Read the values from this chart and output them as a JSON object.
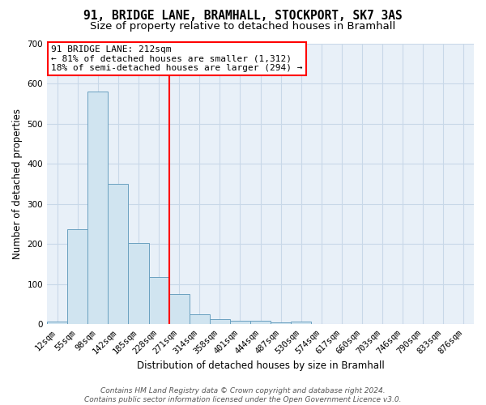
{
  "title1": "91, BRIDGE LANE, BRAMHALL, STOCKPORT, SK7 3AS",
  "title2": "Size of property relative to detached houses in Bramhall",
  "xlabel": "Distribution of detached houses by size in Bramhall",
  "ylabel": "Number of detached properties",
  "bar_labels": [
    "12sqm",
    "55sqm",
    "98sqm",
    "142sqm",
    "185sqm",
    "228sqm",
    "271sqm",
    "314sqm",
    "358sqm",
    "401sqm",
    "444sqm",
    "487sqm",
    "530sqm",
    "574sqm",
    "617sqm",
    "660sqm",
    "703sqm",
    "746sqm",
    "790sqm",
    "833sqm",
    "876sqm"
  ],
  "bar_values": [
    8,
    238,
    580,
    350,
    203,
    118,
    75,
    26,
    14,
    9,
    9,
    6,
    8,
    0,
    0,
    0,
    0,
    0,
    0,
    0,
    0
  ],
  "bar_color": "#d0e4f0",
  "bar_edge_color": "#6aa0c0",
  "vline_x_index": 5.5,
  "vline_color": "red",
  "annotation_text": "91 BRIDGE LANE: 212sqm\n← 81% of detached houses are smaller (1,312)\n18% of semi-detached houses are larger (294) →",
  "annotation_box_color": "white",
  "annotation_box_edge_color": "red",
  "ylim": [
    0,
    700
  ],
  "yticks": [
    0,
    100,
    200,
    300,
    400,
    500,
    600,
    700
  ],
  "grid_color": "#c8d8e8",
  "background_color": "#ffffff",
  "plot_bg_color": "#e8f0f8",
  "footer_line1": "Contains HM Land Registry data © Crown copyright and database right 2024.",
  "footer_line2": "Contains public sector information licensed under the Open Government Licence v3.0.",
  "title1_fontsize": 10.5,
  "title2_fontsize": 9.5,
  "tick_fontsize": 7.5,
  "ylabel_fontsize": 8.5,
  "xlabel_fontsize": 8.5,
  "footer_fontsize": 6.5,
  "annotation_fontsize": 8
}
